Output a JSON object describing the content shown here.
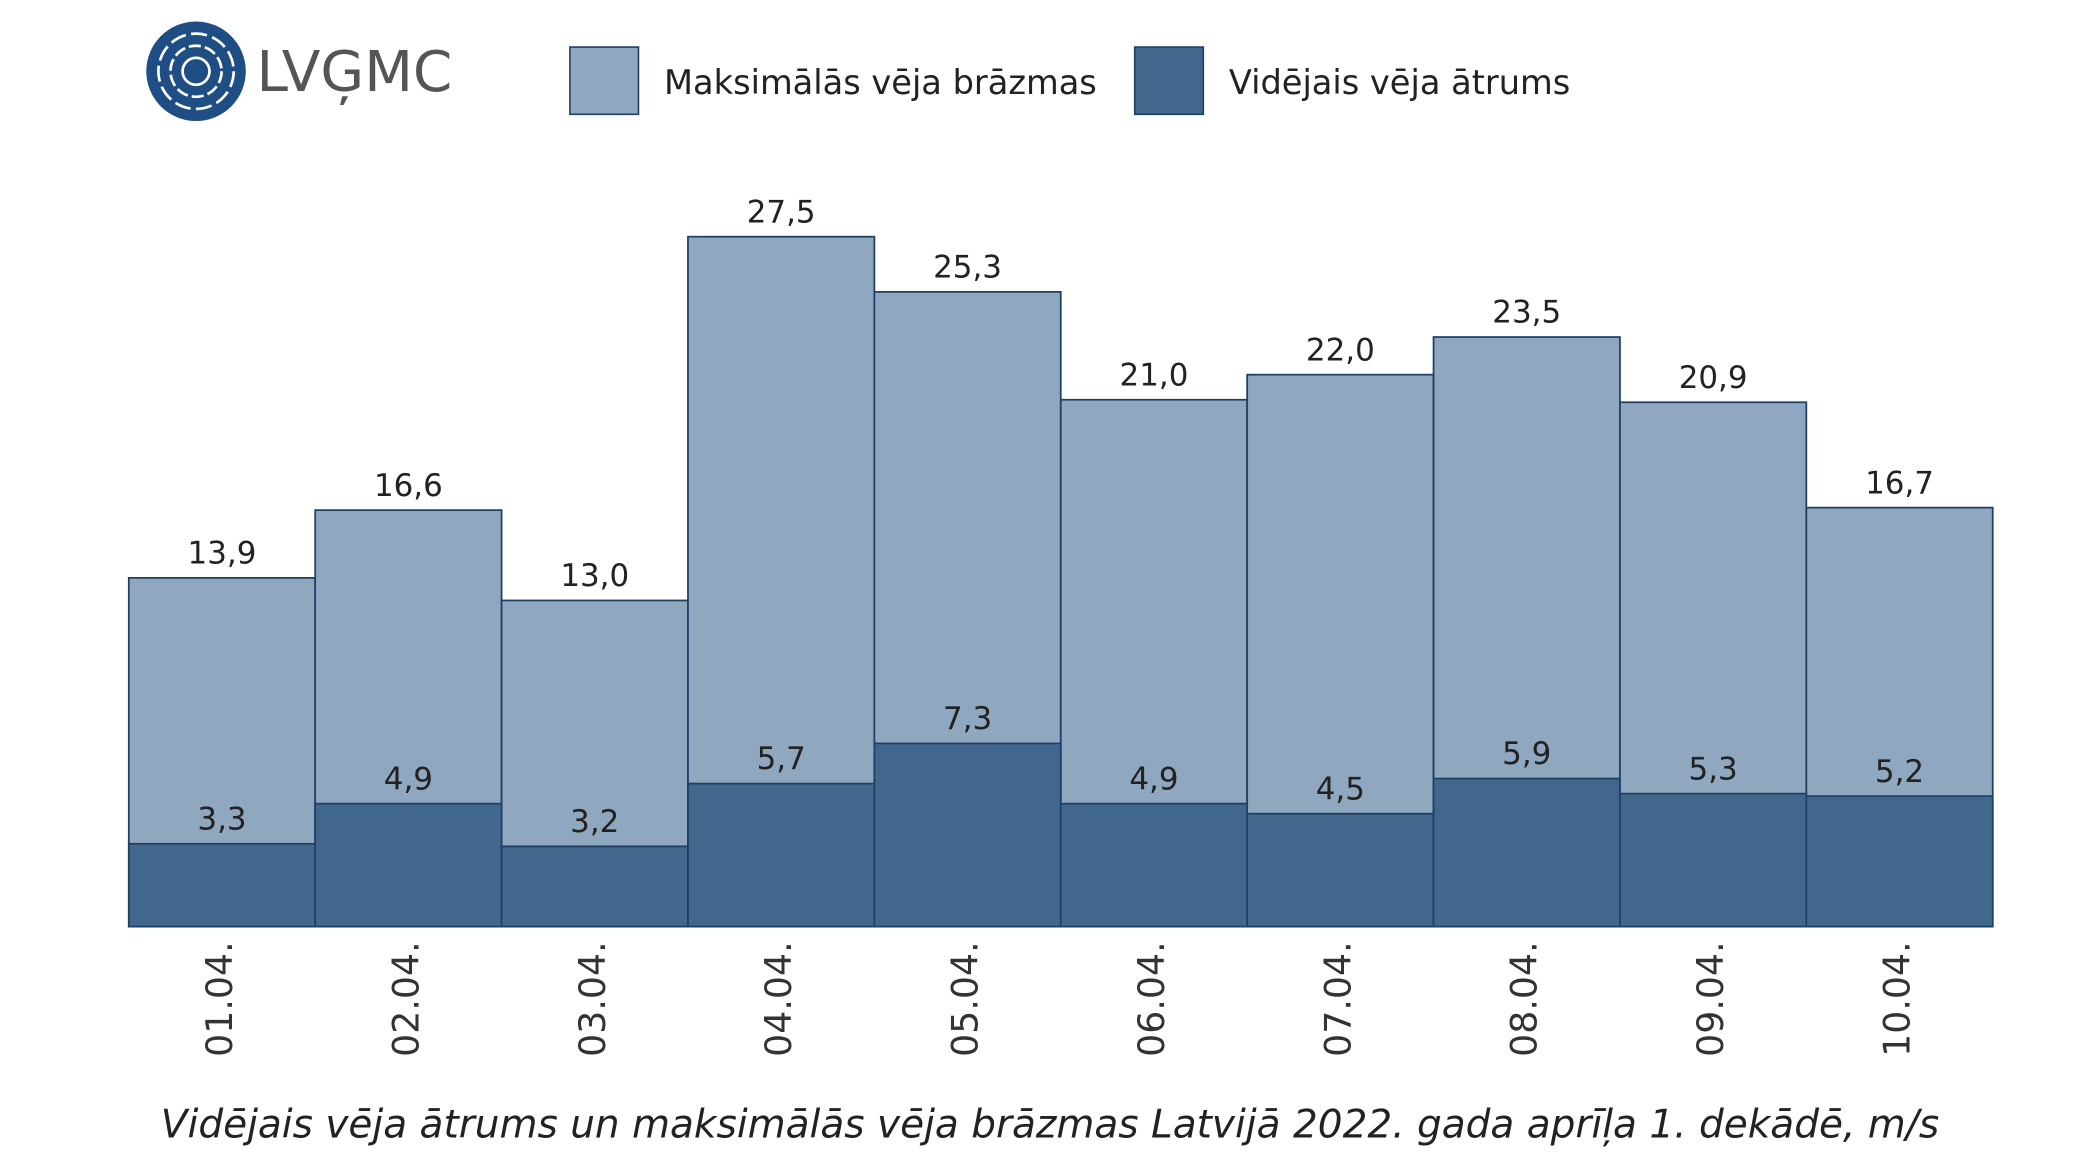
{
  "logo": "LVĢMC",
  "chart_data": {
    "type": "bar",
    "title": "Vidējais vēja ātrums un maksimālās vēja brāzmas Latvijā 2022. gada aprīļa 1. dekādē, m/s",
    "categories": [
      "01.04.",
      "02.04.",
      "03.04.",
      "04.04.",
      "05.04.",
      "06.04.",
      "07.04.",
      "08.04.",
      "09.04.",
      "10.04."
    ],
    "series": [
      {
        "name": "Maksimālās vēja brāzmas",
        "color": "#8fa7bf",
        "values": [
          13.9,
          16.6,
          13.0,
          27.5,
          25.3,
          21.0,
          22.0,
          23.5,
          20.9,
          16.7
        ],
        "value_labels": [
          "13,9",
          "16,6",
          "13,0",
          "27,5",
          "25,3",
          "21,0",
          "22,0",
          "23,5",
          "20,9",
          "16,7"
        ]
      },
      {
        "name": "Vidējais vēja ātrums",
        "color": "#41678d",
        "values": [
          3.3,
          4.9,
          3.2,
          5.7,
          7.3,
          4.9,
          4.5,
          5.9,
          5.3,
          5.2
        ],
        "value_labels": [
          "3,3",
          "4,9",
          "3,2",
          "5,7",
          "7,3",
          "4,9",
          "4,5",
          "5,9",
          "5,3",
          "5,2"
        ]
      }
    ]
  }
}
